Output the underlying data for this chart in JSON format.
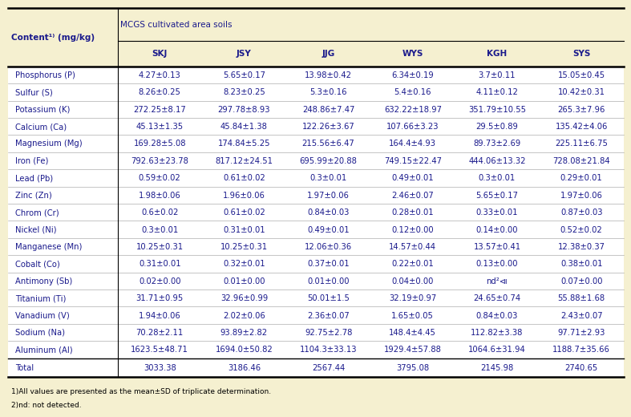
{
  "title": "MCGS cultivated area soils",
  "columns": [
    "SKJ",
    "JSY",
    "JJG",
    "WYS",
    "KGH",
    "SYS"
  ],
  "rows": [
    [
      "Phosphorus (P)",
      "4.27±0.13",
      "5.65±0.17",
      "13.98±0.42",
      "6.34±0.19",
      "3.7±0.11",
      "15.05±0.45"
    ],
    [
      "Sulfur (S)",
      "8.26±0.25",
      "8.23±0.25",
      "5.3±0.16",
      "5.4±0.16",
      "4.11±0.12",
      "10.42±0.31"
    ],
    [
      "Potassium (K)",
      "272.25±8.17",
      "297.78±8.93",
      "248.86±7.47",
      "632.22±18.97",
      "351.79±10.55",
      "265.3±7.96"
    ],
    [
      "Calcium (Ca)",
      "45.13±1.35",
      "45.84±1.38",
      "122.26±3.67",
      "107.66±3.23",
      "29.5±0.89",
      "135.42±4.06"
    ],
    [
      "Magnesium (Mg)",
      "169.28±5.08",
      "174.84±5.25",
      "215.56±6.47",
      "164.4±4.93",
      "89.73±2.69",
      "225.11±6.75"
    ],
    [
      "Iron (Fe)",
      "792.63±23.78",
      "817.12±24.51",
      "695.99±20.88",
      "749.15±22.47",
      "444.06±13.32",
      "728.08±21.84"
    ],
    [
      "Lead (Pb)",
      "0.59±0.02",
      "0.61±0.02",
      "0.3±0.01",
      "0.49±0.01",
      "0.3±0.01",
      "0.29±0.01"
    ],
    [
      "Zinc (Zn)",
      "1.98±0.06",
      "1.96±0.06",
      "1.97±0.06",
      "2.46±0.07",
      "5.65±0.17",
      "1.97±0.06"
    ],
    [
      "Chrom (Cr)",
      "0.6±0.02",
      "0.61±0.02",
      "0.84±0.03",
      "0.28±0.01",
      "0.33±0.01",
      "0.87±0.03"
    ],
    [
      "Nickel (Ni)",
      "0.3±0.01",
      "0.31±0.01",
      "0.49±0.01",
      "0.12±0.00",
      "0.14±0.00",
      "0.52±0.02"
    ],
    [
      "Manganese (Mn)",
      "10.25±0.31",
      "10.25±0.31",
      "12.06±0.36",
      "14.57±0.44",
      "13.57±0.41",
      "12.38±0.37"
    ],
    [
      "Cobalt (Co)",
      "0.31±0.01",
      "0.32±0.01",
      "0.37±0.01",
      "0.22±0.01",
      "0.13±0.00",
      "0.38±0.01"
    ],
    [
      "Antimony (Sb)",
      "0.02±0.00",
      "0.01±0.00",
      "0.01±0.00",
      "0.04±0.00",
      "nd²⧏",
      "0.07±0.00"
    ],
    [
      "Titanium (Ti)",
      "31.71±0.95",
      "32.96±0.99",
      "50.01±1.5",
      "32.19±0.97",
      "24.65±0.74",
      "55.88±1.68"
    ],
    [
      "Vanadium (V)",
      "1.94±0.06",
      "2.02±0.06",
      "2.36±0.07",
      "1.65±0.05",
      "0.84±0.03",
      "2.43±0.07"
    ],
    [
      "Sodium (Na)",
      "70.28±2.11",
      "93.89±2.82",
      "92.75±2.78",
      "148.4±4.45",
      "112.82±3.38",
      "97.71±2.93"
    ],
    [
      "Aluminum (Al)",
      "1623.5±48.71",
      "1694.0±50.82",
      "1104.3±33.13",
      "1929.4±57.88",
      "1064.6±31.94",
      "1188.7±35.66"
    ]
  ],
  "total_row": [
    "Total",
    "3033.38",
    "3186.46",
    "2567.44",
    "3795.08",
    "2145.98",
    "2740.65"
  ],
  "footnote1": "1)All values are presented as the mean±SD of triplicate determination.",
  "footnote2": "2)nd: not detected.",
  "header_bg": "#F5F0D0",
  "body_bg": "#FFFFFF",
  "text_color": "#1A1A8C",
  "border_color": "#000000",
  "font_size": 7.2,
  "header_font_size": 7.5
}
